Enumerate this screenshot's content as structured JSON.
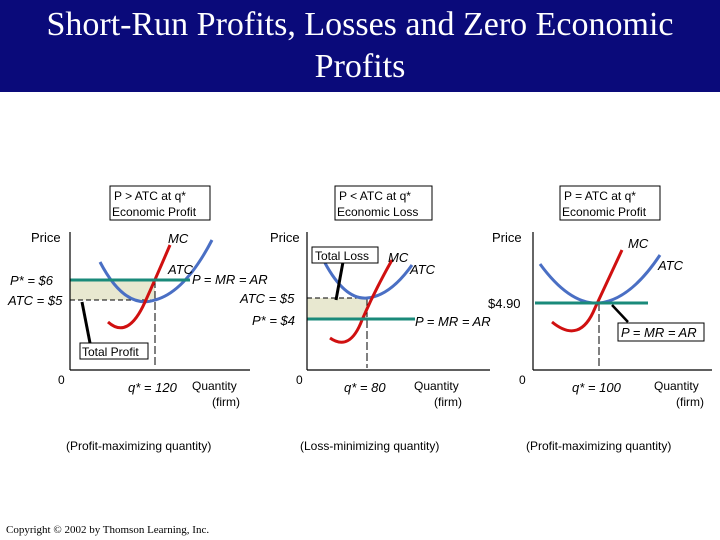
{
  "title": "Short-Run Profits, Losses and Zero Economic Profits",
  "copyright": "Copyright © 2002 by Thomson Learning, Inc.",
  "colors": {
    "title_bg": "#0a0a7a",
    "mc": "#d01010",
    "atc": "#4a6fc4",
    "demand": "#1a8a7a",
    "shade": "#e8e8d0"
  },
  "panels": [
    {
      "header_line1": "P > ATC at q*",
      "header_line2": "Economic Profit",
      "y_label": "Price",
      "mc_label": "MC",
      "atc_label": "ATC",
      "demand_label": "P = MR = AR",
      "price_label": "P* = $6",
      "atc_value_label": "ATC = $5",
      "area_label": "Total Profit",
      "origin": "0",
      "q_label": "q* = 120",
      "x_label_line1": "Quantity",
      "x_label_line2": "(firm)",
      "caption": "(Profit-maximizing quantity)"
    },
    {
      "header_line1": "P < ATC at q*",
      "header_line2": "Economic Loss",
      "y_label": "Price",
      "mc_label": "MC",
      "atc_label": "ATC",
      "demand_label": "P = MR = AR",
      "price_label": "P* = $4",
      "atc_value_label": "ATC = $5",
      "area_label": "Total Loss",
      "origin": "0",
      "q_label": "q* = 80",
      "x_label_line1": "Quantity",
      "x_label_line2": "(firm)",
      "caption": "(Loss-minimizing quantity)"
    },
    {
      "header_line1": "P = ATC at q*",
      "header_line2": "Economic Profit",
      "y_label": "Price",
      "mc_label": "MC",
      "atc_label": "ATC",
      "demand_label": "P = MR = AR",
      "price_label": "$4.90",
      "origin": "0",
      "q_label": "q* = 100",
      "x_label_line1": "Quantity",
      "x_label_line2": "(firm)",
      "caption": "(Profit-maximizing quantity)"
    }
  ]
}
